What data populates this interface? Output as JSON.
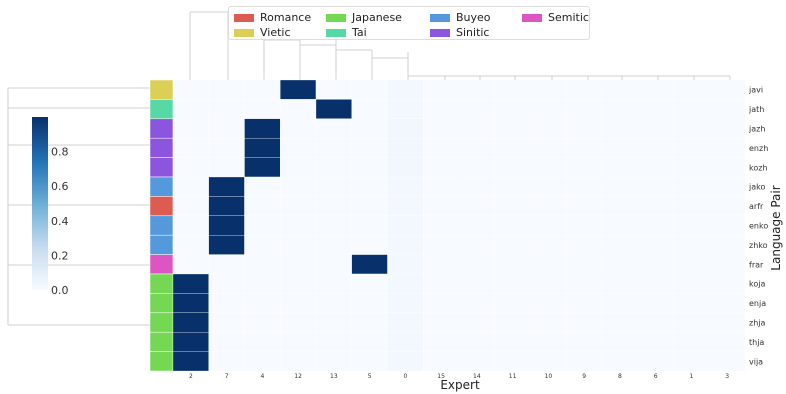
{
  "chart_data": {
    "type": "heatmap",
    "xlabel": "Expert",
    "ylabel": "Language Pair",
    "columns": [
      "2",
      "7",
      "4",
      "12",
      "13",
      "5",
      "0",
      "15",
      "14",
      "11",
      "10",
      "9",
      "8",
      "6",
      "1",
      "3"
    ],
    "rows": [
      "javi",
      "jath",
      "jazh",
      "enzh",
      "kozh",
      "jako",
      "arfr",
      "enko",
      "zhko",
      "frar",
      "koja",
      "enja",
      "zhja",
      "thja",
      "vija"
    ],
    "row_family": [
      "Vietic",
      "Tai",
      "Sinitic",
      "Sinitic",
      "Sinitic",
      "Buyeo",
      "Romance",
      "Buyeo",
      "Buyeo",
      "Semitic",
      "Japanese",
      "Japanese",
      "Japanese",
      "Japanese",
      "Japanese"
    ],
    "values": [
      [
        0,
        0,
        0,
        1,
        0,
        0,
        0.02,
        0,
        0,
        0,
        0,
        0,
        0,
        0,
        0,
        0
      ],
      [
        0,
        0,
        0,
        0,
        1,
        0,
        0.02,
        0,
        0,
        0,
        0,
        0,
        0,
        0,
        0,
        0
      ],
      [
        0,
        0,
        1,
        0,
        0,
        0,
        0.03,
        0,
        0,
        0,
        0,
        0,
        0,
        0,
        0,
        0
      ],
      [
        0,
        0,
        1,
        0,
        0,
        0,
        0.03,
        0,
        0,
        0,
        0,
        0,
        0,
        0,
        0,
        0
      ],
      [
        0,
        0,
        1,
        0,
        0,
        0,
        0.03,
        0,
        0,
        0,
        0,
        0,
        0,
        0,
        0,
        0
      ],
      [
        0,
        1,
        0,
        0,
        0,
        0,
        0.02,
        0,
        0,
        0,
        0,
        0,
        0,
        0,
        0,
        0
      ],
      [
        0,
        1,
        0,
        0,
        0,
        0,
        0.02,
        0,
        0,
        0,
        0,
        0,
        0,
        0,
        0,
        0
      ],
      [
        0,
        1,
        0,
        0,
        0,
        0,
        0.02,
        0,
        0,
        0,
        0,
        0,
        0,
        0,
        0,
        0
      ],
      [
        0,
        1,
        0,
        0,
        0,
        0,
        0.02,
        0,
        0,
        0,
        0,
        0,
        0,
        0,
        0,
        0
      ],
      [
        0,
        0,
        0,
        0,
        0,
        1,
        0.02,
        0,
        0,
        0,
        0,
        0,
        0,
        0,
        0,
        0
      ],
      [
        1,
        0,
        0,
        0,
        0,
        0,
        0.02,
        0,
        0,
        0,
        0,
        0,
        0,
        0,
        0,
        0
      ],
      [
        1,
        0,
        0,
        0,
        0,
        0,
        0.02,
        0,
        0,
        0,
        0,
        0,
        0,
        0,
        0,
        0
      ],
      [
        1,
        0,
        0,
        0,
        0,
        0,
        0.02,
        0,
        0,
        0,
        0,
        0,
        0,
        0,
        0,
        0
      ],
      [
        1,
        0,
        0,
        0,
        0,
        0,
        0.02,
        0,
        0,
        0,
        0,
        0,
        0,
        0,
        0,
        0
      ],
      [
        1,
        0,
        0,
        0,
        0,
        0,
        0.02,
        0,
        0,
        0,
        0,
        0,
        0,
        0,
        0,
        0
      ]
    ],
    "colorbar": {
      "ticks": [
        "0.0",
        "0.2",
        "0.4",
        "0.6",
        "0.8"
      ],
      "range": [
        0,
        1
      ],
      "colormap": "Blues"
    },
    "legend": [
      {
        "label": "Romance",
        "color": "#dd5c52"
      },
      {
        "label": "Vietic",
        "color": "#dccf55"
      },
      {
        "label": "Japanese",
        "color": "#74d855"
      },
      {
        "label": "Tai",
        "color": "#56d9a6"
      },
      {
        "label": "Buyeo",
        "color": "#5599dd"
      },
      {
        "label": "Sinitic",
        "color": "#8c55dd"
      },
      {
        "label": "Semitic",
        "color": "#dd55c2"
      }
    ],
    "legend_placement": "top"
  }
}
